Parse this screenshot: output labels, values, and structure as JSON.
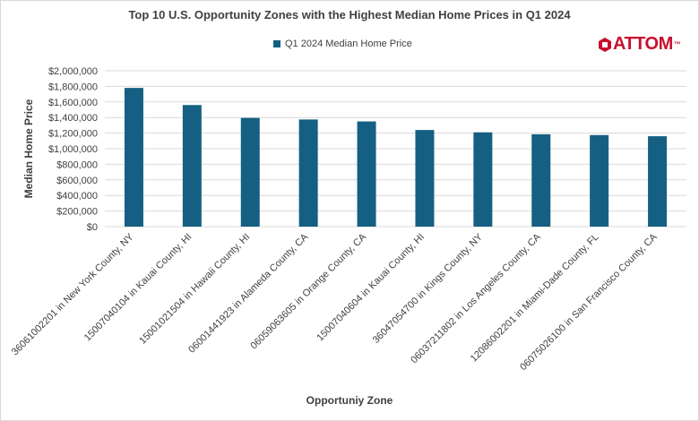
{
  "chart_data": {
    "type": "bar",
    "title": "Top 10 U.S. Opportunity Zones with the Highest Median Home Prices in Q1 2024",
    "xlabel": "Opportuniy Zone",
    "ylabel": "Median Home Price",
    "ylim": [
      0,
      2000000
    ],
    "yticks": [
      "$0",
      "$200,000",
      "$400,000",
      "$600,000",
      "$800,000",
      "$1,000,000",
      "$1,200,000",
      "$1,400,000",
      "$1,600,000",
      "$1,800,000",
      "$2,000,000"
    ],
    "ytick_values": [
      0,
      200000,
      400000,
      600000,
      800000,
      1000000,
      1200000,
      1400000,
      1600000,
      1800000,
      2000000
    ],
    "grid": true,
    "legend_position": "top-center",
    "series": [
      {
        "name": "Q1 2024 Median Home Price",
        "color": "#156082",
        "values": [
          1780000,
          1560000,
          1395000,
          1375000,
          1350000,
          1240000,
          1210000,
          1185000,
          1175000,
          1160000
        ]
      }
    ],
    "categories": [
      "36061002201 in New York County, NY",
      "15007040104 in Kauai County, HI",
      "15001021504 in Hawaii County, HI",
      "06001441923 in Alameda County, CA",
      "06059063605 in Orange County, CA",
      "15007040604 in Kauai County, HI",
      "36047054700 in Kings County, NY",
      "06037211802 in Los Angeles County, CA",
      "12086002201 in Miami-Dade County, FL",
      "06075026100 in San Francisco County, CA"
    ]
  },
  "logo": {
    "text": "ATTOM",
    "tm": "™",
    "color": "#c8102e"
  },
  "colors": {
    "grid": "#d9d9d9",
    "text": "#404040",
    "bar": "#156082"
  }
}
